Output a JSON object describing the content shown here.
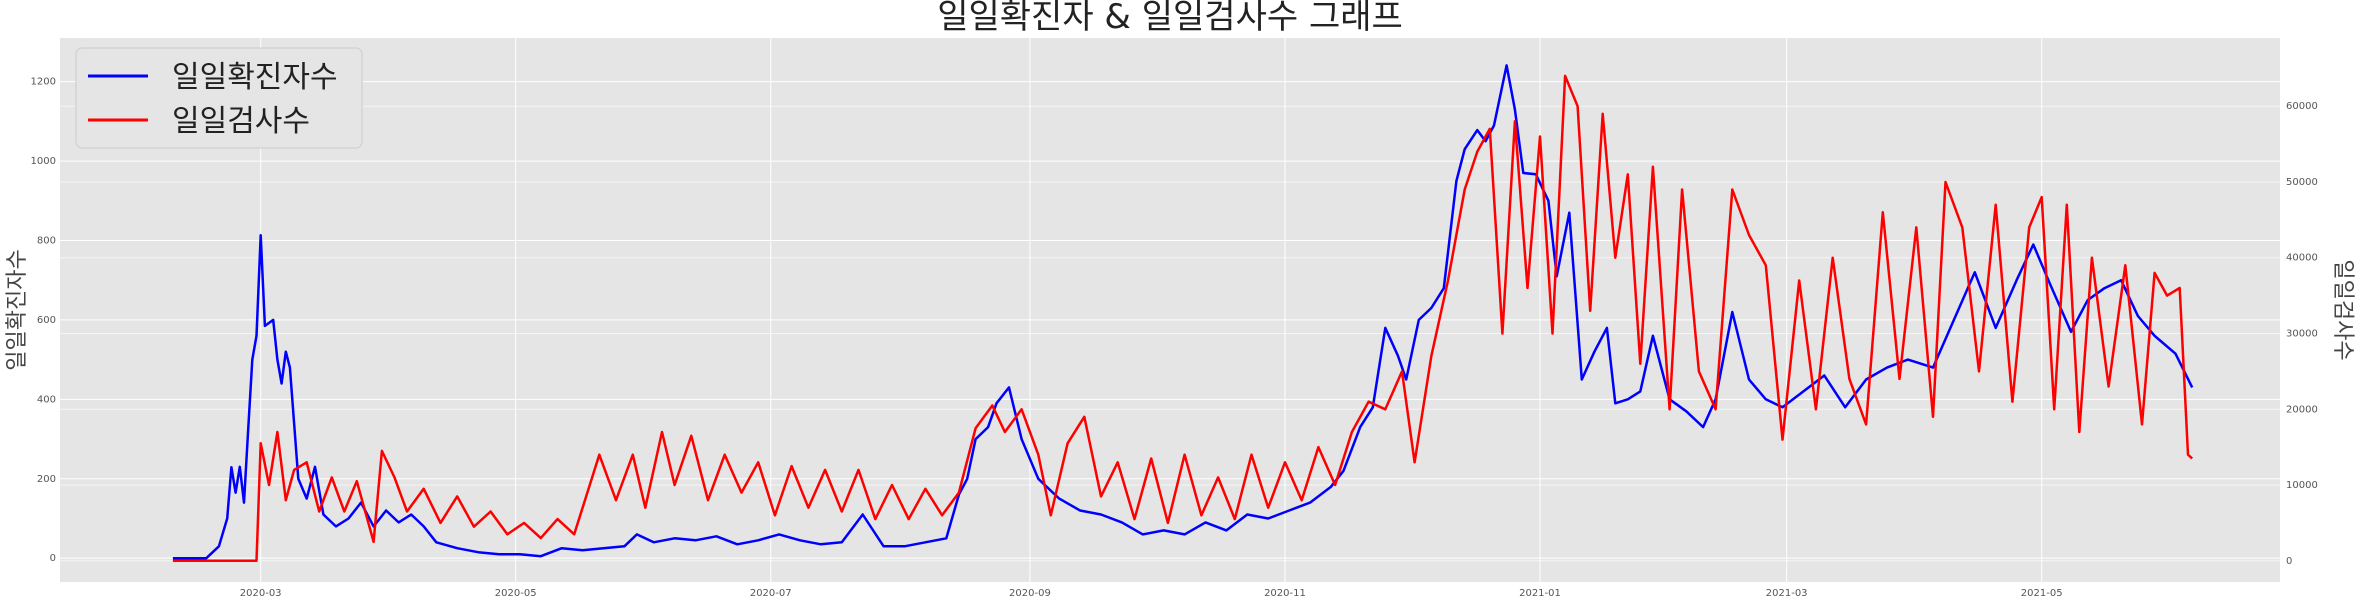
{
  "chart_data": {
    "type": "line",
    "title": "일일확진자 & 일일검사수 그래프",
    "xlabel": "",
    "ylabel_left": "일일확진자수",
    "ylabel_right": "일일검사수",
    "x_range": [
      "2020-01-13",
      "2021-06-27"
    ],
    "ylim_left": [
      -60,
      1310
    ],
    "ylim_right": [
      -2800,
      69000
    ],
    "y_ticks_left": [
      0,
      200,
      400,
      600,
      800,
      1000,
      1200
    ],
    "y_ticks_right": [
      0,
      10000,
      20000,
      30000,
      40000,
      50000,
      60000
    ],
    "x_ticks": [
      "2020-03",
      "2020-05",
      "2020-07",
      "2020-09",
      "2020-11",
      "2021-01",
      "2021-03",
      "2021-05"
    ],
    "grid": true,
    "legend_placement": "top-left",
    "series": [
      {
        "name": "일일확진자수",
        "color": "#0000ff",
        "axis": "left",
        "points": [
          [
            "2020-02-09",
            0
          ],
          [
            "2020-02-17",
            0
          ],
          [
            "2020-02-20",
            30
          ],
          [
            "2020-02-22",
            100
          ],
          [
            "2020-02-23",
            229
          ],
          [
            "2020-02-24",
            165
          ],
          [
            "2020-02-25",
            230
          ],
          [
            "2020-02-26",
            140
          ],
          [
            "2020-02-27",
            320
          ],
          [
            "2020-02-28",
            500
          ],
          [
            "2020-02-29",
            560
          ],
          [
            "2020-03-01",
            813
          ],
          [
            "2020-03-02",
            585
          ],
          [
            "2020-03-04",
            600
          ],
          [
            "2020-03-05",
            500
          ],
          [
            "2020-03-06",
            440
          ],
          [
            "2020-03-07",
            520
          ],
          [
            "2020-03-08",
            480
          ],
          [
            "2020-03-10",
            200
          ],
          [
            "2020-03-12",
            150
          ],
          [
            "2020-03-14",
            230
          ],
          [
            "2020-03-16",
            110
          ],
          [
            "2020-03-19",
            80
          ],
          [
            "2020-03-22",
            100
          ],
          [
            "2020-03-25",
            140
          ],
          [
            "2020-03-28",
            80
          ],
          [
            "2020-03-31",
            120
          ],
          [
            "2020-04-03",
            90
          ],
          [
            "2020-04-06",
            110
          ],
          [
            "2020-04-09",
            80
          ],
          [
            "2020-04-12",
            40
          ],
          [
            "2020-04-17",
            25
          ],
          [
            "2020-04-22",
            15
          ],
          [
            "2020-04-27",
            10
          ],
          [
            "2020-05-02",
            10
          ],
          [
            "2020-05-07",
            5
          ],
          [
            "2020-05-12",
            25
          ],
          [
            "2020-05-17",
            20
          ],
          [
            "2020-05-22",
            25
          ],
          [
            "2020-05-27",
            30
          ],
          [
            "2020-05-30",
            60
          ],
          [
            "2020-06-03",
            40
          ],
          [
            "2020-06-08",
            50
          ],
          [
            "2020-06-13",
            45
          ],
          [
            "2020-06-18",
            55
          ],
          [
            "2020-06-23",
            35
          ],
          [
            "2020-06-28",
            45
          ],
          [
            "2020-07-03",
            60
          ],
          [
            "2020-07-08",
            45
          ],
          [
            "2020-07-13",
            35
          ],
          [
            "2020-07-18",
            40
          ],
          [
            "2020-07-23",
            110
          ],
          [
            "2020-07-28",
            30
          ],
          [
            "2020-08-02",
            30
          ],
          [
            "2020-08-07",
            40
          ],
          [
            "2020-08-12",
            50
          ],
          [
            "2020-08-15",
            160
          ],
          [
            "2020-08-17",
            200
          ],
          [
            "2020-08-19",
            300
          ],
          [
            "2020-08-22",
            330
          ],
          [
            "2020-08-24",
            390
          ],
          [
            "2020-08-27",
            430
          ],
          [
            "2020-08-30",
            300
          ],
          [
            "2020-09-03",
            200
          ],
          [
            "2020-09-08",
            150
          ],
          [
            "2020-09-13",
            120
          ],
          [
            "2020-09-18",
            110
          ],
          [
            "2020-09-23",
            90
          ],
          [
            "2020-09-28",
            60
          ],
          [
            "2020-10-03",
            70
          ],
          [
            "2020-10-08",
            60
          ],
          [
            "2020-10-13",
            90
          ],
          [
            "2020-10-18",
            70
          ],
          [
            "2020-10-23",
            110
          ],
          [
            "2020-10-28",
            100
          ],
          [
            "2020-11-02",
            120
          ],
          [
            "2020-11-07",
            140
          ],
          [
            "2020-11-12",
            180
          ],
          [
            "2020-11-15",
            220
          ],
          [
            "2020-11-19",
            330
          ],
          [
            "2020-11-22",
            380
          ],
          [
            "2020-11-25",
            580
          ],
          [
            "2020-11-28",
            510
          ],
          [
            "2020-11-30",
            450
          ],
          [
            "2020-12-03",
            600
          ],
          [
            "2020-12-06",
            630
          ],
          [
            "2020-12-09",
            680
          ],
          [
            "2020-12-12",
            950
          ],
          [
            "2020-12-14",
            1030
          ],
          [
            "2020-12-17",
            1078
          ],
          [
            "2020-12-19",
            1050
          ],
          [
            "2020-12-21",
            1090
          ],
          [
            "2020-12-24",
            1241
          ],
          [
            "2020-12-26",
            1130
          ],
          [
            "2020-12-28",
            970
          ],
          [
            "2020-12-31",
            967
          ],
          [
            "2021-01-03",
            900
          ],
          [
            "2021-01-05",
            710
          ],
          [
            "2021-01-08",
            870
          ],
          [
            "2021-01-11",
            450
          ],
          [
            "2021-01-14",
            520
          ],
          [
            "2021-01-17",
            580
          ],
          [
            "2021-01-19",
            390
          ],
          [
            "2021-01-22",
            400
          ],
          [
            "2021-01-25",
            420
          ],
          [
            "2021-01-28",
            560
          ],
          [
            "2021-02-01",
            400
          ],
          [
            "2021-02-05",
            370
          ],
          [
            "2021-02-09",
            330
          ],
          [
            "2021-02-12",
            400
          ],
          [
            "2021-02-16",
            620
          ],
          [
            "2021-02-20",
            450
          ],
          [
            "2021-02-24",
            400
          ],
          [
            "2021-02-28",
            380
          ],
          [
            "2021-03-05",
            420
          ],
          [
            "2021-03-10",
            460
          ],
          [
            "2021-03-15",
            380
          ],
          [
            "2021-03-20",
            450
          ],
          [
            "2021-03-25",
            480
          ],
          [
            "2021-03-30",
            500
          ],
          [
            "2021-04-05",
            480
          ],
          [
            "2021-04-10",
            600
          ],
          [
            "2021-04-15",
            720
          ],
          [
            "2021-04-20",
            580
          ],
          [
            "2021-04-25",
            700
          ],
          [
            "2021-04-29",
            790
          ],
          [
            "2021-05-03",
            690
          ],
          [
            "2021-05-08",
            570
          ],
          [
            "2021-05-12",
            650
          ],
          [
            "2021-05-16",
            680
          ],
          [
            "2021-05-20",
            700
          ],
          [
            "2021-05-24",
            610
          ],
          [
            "2021-05-28",
            560
          ],
          [
            "2021-06-02",
            515
          ],
          [
            "2021-06-06",
            430
          ]
        ]
      },
      {
        "name": "일일검사수",
        "color": "#ff0000",
        "axis": "right",
        "points": [
          [
            "2020-02-09",
            0
          ],
          [
            "2020-02-29",
            0
          ],
          [
            "2020-03-01",
            15500
          ],
          [
            "2020-03-03",
            10000
          ],
          [
            "2020-03-05",
            17000
          ],
          [
            "2020-03-07",
            8000
          ],
          [
            "2020-03-09",
            12000
          ],
          [
            "2020-03-12",
            13000
          ],
          [
            "2020-03-15",
            6500
          ],
          [
            "2020-03-18",
            11000
          ],
          [
            "2020-03-21",
            6500
          ],
          [
            "2020-03-24",
            10500
          ],
          [
            "2020-03-28",
            2500
          ],
          [
            "2020-03-30",
            14500
          ],
          [
            "2020-04-02",
            11000
          ],
          [
            "2020-04-05",
            6500
          ],
          [
            "2020-04-09",
            9500
          ],
          [
            "2020-04-13",
            5000
          ],
          [
            "2020-04-17",
            8500
          ],
          [
            "2020-04-21",
            4500
          ],
          [
            "2020-04-25",
            6500
          ],
          [
            "2020-04-29",
            3500
          ],
          [
            "2020-05-03",
            5000
          ],
          [
            "2020-05-07",
            3000
          ],
          [
            "2020-05-11",
            5500
          ],
          [
            "2020-05-15",
            3500
          ],
          [
            "2020-05-17",
            7000
          ],
          [
            "2020-05-21",
            14000
          ],
          [
            "2020-05-25",
            8000
          ],
          [
            "2020-05-29",
            14000
          ],
          [
            "2020-06-01",
            7000
          ],
          [
            "2020-06-05",
            17000
          ],
          [
            "2020-06-08",
            10000
          ],
          [
            "2020-06-12",
            16500
          ],
          [
            "2020-06-16",
            8000
          ],
          [
            "2020-06-20",
            14000
          ],
          [
            "2020-06-24",
            9000
          ],
          [
            "2020-06-28",
            13000
          ],
          [
            "2020-07-02",
            6000
          ],
          [
            "2020-07-06",
            12500
          ],
          [
            "2020-07-10",
            7000
          ],
          [
            "2020-07-14",
            12000
          ],
          [
            "2020-07-18",
            6500
          ],
          [
            "2020-07-22",
            12000
          ],
          [
            "2020-07-26",
            5500
          ],
          [
            "2020-07-30",
            10000
          ],
          [
            "2020-08-03",
            5500
          ],
          [
            "2020-08-07",
            9500
          ],
          [
            "2020-08-11",
            6000
          ],
          [
            "2020-08-15",
            9000
          ],
          [
            "2020-08-19",
            17500
          ],
          [
            "2020-08-23",
            20500
          ],
          [
            "2020-08-26",
            17000
          ],
          [
            "2020-08-30",
            20000
          ],
          [
            "2020-09-03",
            14000
          ],
          [
            "2020-09-06",
            6000
          ],
          [
            "2020-09-10",
            15500
          ],
          [
            "2020-09-14",
            19000
          ],
          [
            "2020-09-18",
            8500
          ],
          [
            "2020-09-22",
            13000
          ],
          [
            "2020-09-26",
            5500
          ],
          [
            "2020-09-30",
            13500
          ],
          [
            "2020-10-04",
            5000
          ],
          [
            "2020-10-08",
            14000
          ],
          [
            "2020-10-12",
            6000
          ],
          [
            "2020-10-16",
            11000
          ],
          [
            "2020-10-20",
            5500
          ],
          [
            "2020-10-24",
            14000
          ],
          [
            "2020-10-28",
            7000
          ],
          [
            "2020-11-01",
            13000
          ],
          [
            "2020-11-05",
            8000
          ],
          [
            "2020-11-09",
            15000
          ],
          [
            "2020-11-13",
            10000
          ],
          [
            "2020-11-17",
            17000
          ],
          [
            "2020-11-21",
            21000
          ],
          [
            "2020-11-25",
            20000
          ],
          [
            "2020-11-29",
            25000
          ],
          [
            "2020-12-02",
            13000
          ],
          [
            "2020-12-06",
            27000
          ],
          [
            "2020-12-10",
            37000
          ],
          [
            "2020-12-14",
            49000
          ],
          [
            "2020-12-17",
            54000
          ],
          [
            "2020-12-20",
            57000
          ],
          [
            "2020-12-23",
            30000
          ],
          [
            "2020-12-26",
            58000
          ],
          [
            "2020-12-29",
            36000
          ],
          [
            "2021-01-01",
            56000
          ],
          [
            "2021-01-04",
            30000
          ],
          [
            "2021-01-07",
            64000
          ],
          [
            "2021-01-10",
            60000
          ],
          [
            "2021-01-13",
            33000
          ],
          [
            "2021-01-16",
            59000
          ],
          [
            "2021-01-19",
            40000
          ],
          [
            "2021-01-22",
            51000
          ],
          [
            "2021-01-25",
            26000
          ],
          [
            "2021-01-28",
            52000
          ],
          [
            "2021-02-01",
            20000
          ],
          [
            "2021-02-04",
            49000
          ],
          [
            "2021-02-08",
            25000
          ],
          [
            "2021-02-12",
            20000
          ],
          [
            "2021-02-16",
            49000
          ],
          [
            "2021-02-20",
            43000
          ],
          [
            "2021-02-24",
            39000
          ],
          [
            "2021-02-28",
            16000
          ],
          [
            "2021-03-04",
            37000
          ],
          [
            "2021-03-08",
            20000
          ],
          [
            "2021-03-12",
            40000
          ],
          [
            "2021-03-16",
            24000
          ],
          [
            "2021-03-20",
            18000
          ],
          [
            "2021-03-24",
            46000
          ],
          [
            "2021-03-28",
            24000
          ],
          [
            "2021-04-01",
            44000
          ],
          [
            "2021-04-05",
            19000
          ],
          [
            "2021-04-08",
            50000
          ],
          [
            "2021-04-12",
            44000
          ],
          [
            "2021-04-16",
            25000
          ],
          [
            "2021-04-20",
            47000
          ],
          [
            "2021-04-24",
            21000
          ],
          [
            "2021-04-28",
            44000
          ],
          [
            "2021-05-01",
            48000
          ],
          [
            "2021-05-04",
            20000
          ],
          [
            "2021-05-07",
            47000
          ],
          [
            "2021-05-10",
            17000
          ],
          [
            "2021-05-13",
            40000
          ],
          [
            "2021-05-17",
            23000
          ],
          [
            "2021-05-21",
            39000
          ],
          [
            "2021-05-25",
            18000
          ],
          [
            "2021-05-28",
            38000
          ],
          [
            "2021-05-31",
            35000
          ],
          [
            "2021-06-03",
            36000
          ],
          [
            "2021-06-05",
            14000
          ],
          [
            "2021-06-06",
            13500
          ]
        ]
      }
    ]
  }
}
